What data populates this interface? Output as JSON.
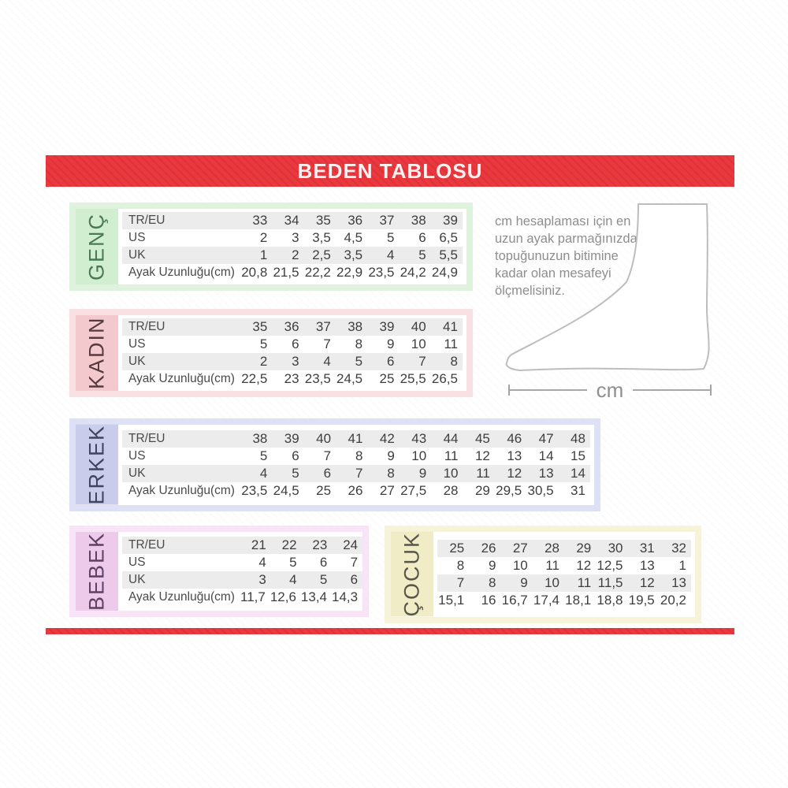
{
  "header": {
    "title": "BEDEN TABLOSU",
    "bar_color": "#e9383e"
  },
  "instructions": {
    "lines": [
      "cm hesaplaması için en",
      "uzun ayak parmağınızdan",
      "topuğunuzun bitimine",
      "kadar olan mesafeyi",
      "ölçmelisiniz."
    ]
  },
  "diagram": {
    "unit_label": "cm"
  },
  "row_stripe_color": "#ececec",
  "tables": [
    {
      "label": "GENÇ",
      "theme": {
        "border": "#def2dd",
        "strip": "#d2eed1",
        "text": "#4a7a52"
      },
      "rows": [
        {
          "label": "TR/EU",
          "values": [
            "33",
            "34",
            "35",
            "36",
            "37",
            "38",
            "39"
          ]
        },
        {
          "label": "US",
          "values": [
            "2",
            "3",
            "3,5",
            "4,5",
            "5",
            "6",
            "6,5"
          ]
        },
        {
          "label": "UK",
          "values": [
            "1",
            "2",
            "2,5",
            "3,5",
            "4",
            "5",
            "5,5"
          ]
        },
        {
          "label": "Ayak Uzunluğu(cm)",
          "values": [
            "20,8",
            "21,5",
            "22,2",
            "22,9",
            "23,5",
            "24,2",
            "24,9"
          ]
        }
      ]
    },
    {
      "label": "KADIN",
      "theme": {
        "border": "#f9e0e2",
        "strip": "#f3c9ce",
        "text": "#573a3f"
      },
      "rows": [
        {
          "label": "TR/EU",
          "values": [
            "35",
            "36",
            "37",
            "38",
            "39",
            "40",
            "41"
          ]
        },
        {
          "label": "US",
          "values": [
            "5",
            "6",
            "7",
            "8",
            "9",
            "10",
            "11"
          ]
        },
        {
          "label": "UK",
          "values": [
            "2",
            "3",
            "4",
            "5",
            "6",
            "7",
            "8"
          ]
        },
        {
          "label": "Ayak Uzunluğu(cm)",
          "values": [
            "22,5",
            "23",
            "23,5",
            "24,5",
            "25",
            "25,5",
            "26,5"
          ]
        }
      ]
    },
    {
      "label": "ERKEK",
      "theme": {
        "border": "#dee0f5",
        "strip": "#c9cdeb",
        "text": "#41435f"
      },
      "rows": [
        {
          "label": "TR/EU",
          "values": [
            "38",
            "39",
            "40",
            "41",
            "42",
            "43",
            "44",
            "45",
            "46",
            "47",
            "48"
          ]
        },
        {
          "label": "US",
          "values": [
            "5",
            "6",
            "7",
            "8",
            "9",
            "10",
            "11",
            "12",
            "13",
            "14",
            "15"
          ]
        },
        {
          "label": "UK",
          "values": [
            "4",
            "5",
            "6",
            "7",
            "8",
            "9",
            "10",
            "11",
            "12",
            "13",
            "14"
          ]
        },
        {
          "label": "Ayak Uzunluğu(cm)",
          "values": [
            "23,5",
            "24,5",
            "25",
            "26",
            "27",
            "27,5",
            "28",
            "29",
            "29,5",
            "30,5",
            "31"
          ]
        }
      ]
    },
    {
      "label": "BEBEK",
      "theme": {
        "border": "#f8e4f6",
        "strip": "#eecaea",
        "text": "#5e4064"
      },
      "rows": [
        {
          "label": "TR/EU",
          "values": [
            "21",
            "22",
            "23",
            "24"
          ]
        },
        {
          "label": "US",
          "values": [
            "4",
            "5",
            "6",
            "7"
          ]
        },
        {
          "label": "UK",
          "values": [
            "3",
            "4",
            "5",
            "6"
          ]
        },
        {
          "label": "Ayak Uzunluğu(cm)",
          "values": [
            "11,7",
            "12,6",
            "13,4",
            "14,3"
          ]
        }
      ]
    },
    {
      "label": "ÇOCUK",
      "theme": {
        "border": "#f6f3d8",
        "strip": "#f0ecc5",
        "text": "#57564a"
      },
      "rows": [
        {
          "values": [
            "25",
            "26",
            "27",
            "28",
            "29",
            "30",
            "31",
            "32"
          ]
        },
        {
          "values": [
            "8",
            "9",
            "10",
            "11",
            "12",
            "12,5",
            "13",
            "1"
          ]
        },
        {
          "values": [
            "7",
            "8",
            "9",
            "10",
            "11",
            "11,5",
            "12",
            "13"
          ]
        },
        {
          "values": [
            "15,1",
            "16",
            "16,7",
            "17,4",
            "18,1",
            "18,8",
            "19,5",
            "20,2"
          ]
        }
      ]
    }
  ]
}
